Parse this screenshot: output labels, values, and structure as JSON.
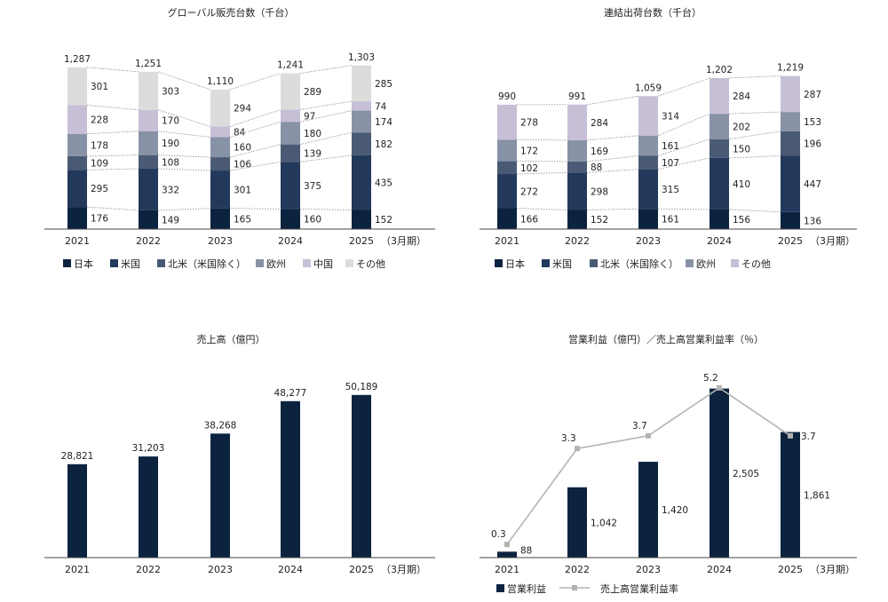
{
  "colors": {
    "japan": "#0c2340",
    "us": "#23395b",
    "north_america": "#4a5a74",
    "europe": "#8892a6",
    "china": "#c7bfd6",
    "other": "#dcdcdc",
    "bar": "#0c2340",
    "line": "#b3b3b3",
    "connector": "#8a8a8a",
    "axis": "#444444"
  },
  "chart_data": [
    {
      "id": "global_sales",
      "type": "bar",
      "stacked": true,
      "title": "グローバル販売台数（千台）",
      "categories": [
        "2021",
        "2022",
        "2023",
        "2024",
        "2025"
      ],
      "x_suffix": "（3月期）",
      "series": [
        {
          "name": "日本",
          "color_key": "japan",
          "values": [
            176,
            149,
            165,
            160,
            152
          ]
        },
        {
          "name": "米国",
          "color_key": "us",
          "values": [
            295,
            332,
            301,
            375,
            435
          ]
        },
        {
          "name": "北米（米国除く）",
          "color_key": "north_america",
          "values": [
            109,
            108,
            106,
            139,
            182
          ]
        },
        {
          "name": "欧州",
          "color_key": "europe",
          "values": [
            178,
            190,
            160,
            180,
            174
          ]
        },
        {
          "name": "中国",
          "color_key": "china",
          "values": [
            228,
            170,
            84,
            97,
            74
          ]
        },
        {
          "name": "その他",
          "color_key": "other",
          "values": [
            301,
            303,
            294,
            289,
            285
          ]
        }
      ],
      "totals": [
        "1,287",
        "1,251",
        "1,110",
        "1,241",
        "1,303"
      ],
      "ylim": [
        0,
        1400
      ]
    },
    {
      "id": "consolidated_shipments",
      "type": "bar",
      "stacked": true,
      "title": "連結出荷台数（千台）",
      "categories": [
        "2021",
        "2022",
        "2023",
        "2024",
        "2025"
      ],
      "x_suffix": "（3月期）",
      "series": [
        {
          "name": "日本",
          "color_key": "japan",
          "values": [
            166,
            152,
            161,
            156,
            136
          ]
        },
        {
          "name": "米国",
          "color_key": "us",
          "values": [
            272,
            298,
            315,
            410,
            447
          ]
        },
        {
          "name": "北米（米国除く）",
          "color_key": "north_america",
          "values": [
            102,
            88,
            107,
            150,
            196
          ]
        },
        {
          "name": "欧州",
          "color_key": "europe",
          "values": [
            172,
            169,
            161,
            202,
            153
          ]
        },
        {
          "name": "その他",
          "color_key": "china",
          "values": [
            278,
            284,
            314,
            284,
            287
          ]
        }
      ],
      "totals": [
        "990",
        "991",
        "1,059",
        "1,202",
        "1,219"
      ],
      "ylim": [
        0,
        1400
      ]
    },
    {
      "id": "net_sales",
      "type": "bar",
      "title": "売上高（億円）",
      "categories": [
        "2021",
        "2022",
        "2023",
        "2024",
        "2025"
      ],
      "x_suffix": "（3月期）",
      "values": [
        28821,
        31203,
        38268,
        48277,
        50189
      ],
      "value_labels": [
        "28,821",
        "31,203",
        "38,268",
        "48,277",
        "50,189"
      ],
      "ylim": [
        0,
        60000
      ]
    },
    {
      "id": "operating_income",
      "type": "bar+line",
      "title": "営業利益（億円）／売上高営業利益率（％）",
      "categories": [
        "2021",
        "2022",
        "2023",
        "2024",
        "2025"
      ],
      "x_suffix": "（3月期）",
      "series": [
        {
          "name": "営業利益",
          "kind": "bar",
          "values": [
            88,
            1042,
            1420,
            2505,
            1861
          ],
          "value_labels": [
            "88",
            "1,042",
            "1,420",
            "2,505",
            "1,861"
          ]
        },
        {
          "name": "売上高営業利益率",
          "kind": "line",
          "values": [
            0.3,
            3.3,
            3.7,
            5.2,
            3.7
          ],
          "value_labels": [
            "0.3",
            "3.3",
            "3.7",
            "5.2",
            "3.7"
          ]
        }
      ],
      "bar_ylim": [
        0,
        2700
      ],
      "line_ylim": [
        0,
        6.5
      ]
    }
  ]
}
